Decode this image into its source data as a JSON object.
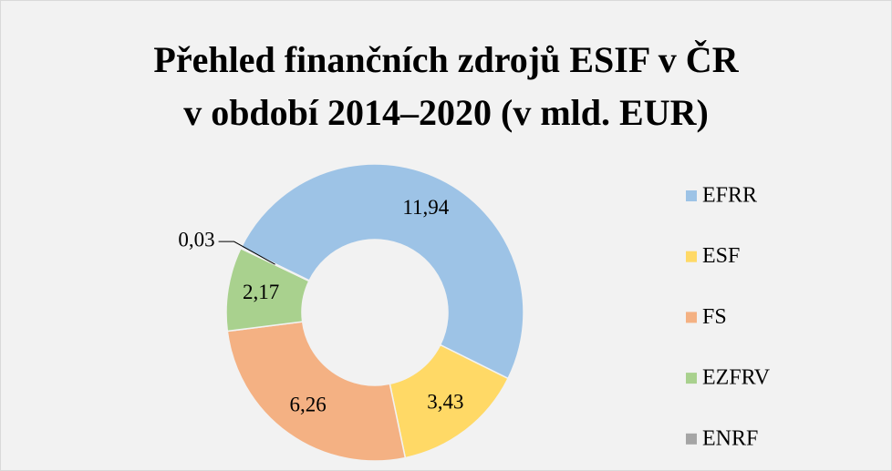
{
  "chart_data": {
    "type": "donut",
    "title": [
      "Přehled finančních  zdrojů ESIF v ČR",
      "v období 2014–2020 (v mld. EUR)"
    ],
    "categories": [
      "EFRR",
      "ESF",
      "FS",
      "EZFRV",
      "ENRF"
    ],
    "values": [
      11.94,
      3.43,
      6.26,
      2.17,
      0.03
    ],
    "value_labels": [
      "11,94",
      "3,43",
      "6,26",
      "2,17",
      "0,03"
    ],
    "colors": [
      "#9dc3e6",
      "#ffd966",
      "#f4b183",
      "#a9d18e",
      "#a5a5a5"
    ],
    "legend": "right"
  }
}
